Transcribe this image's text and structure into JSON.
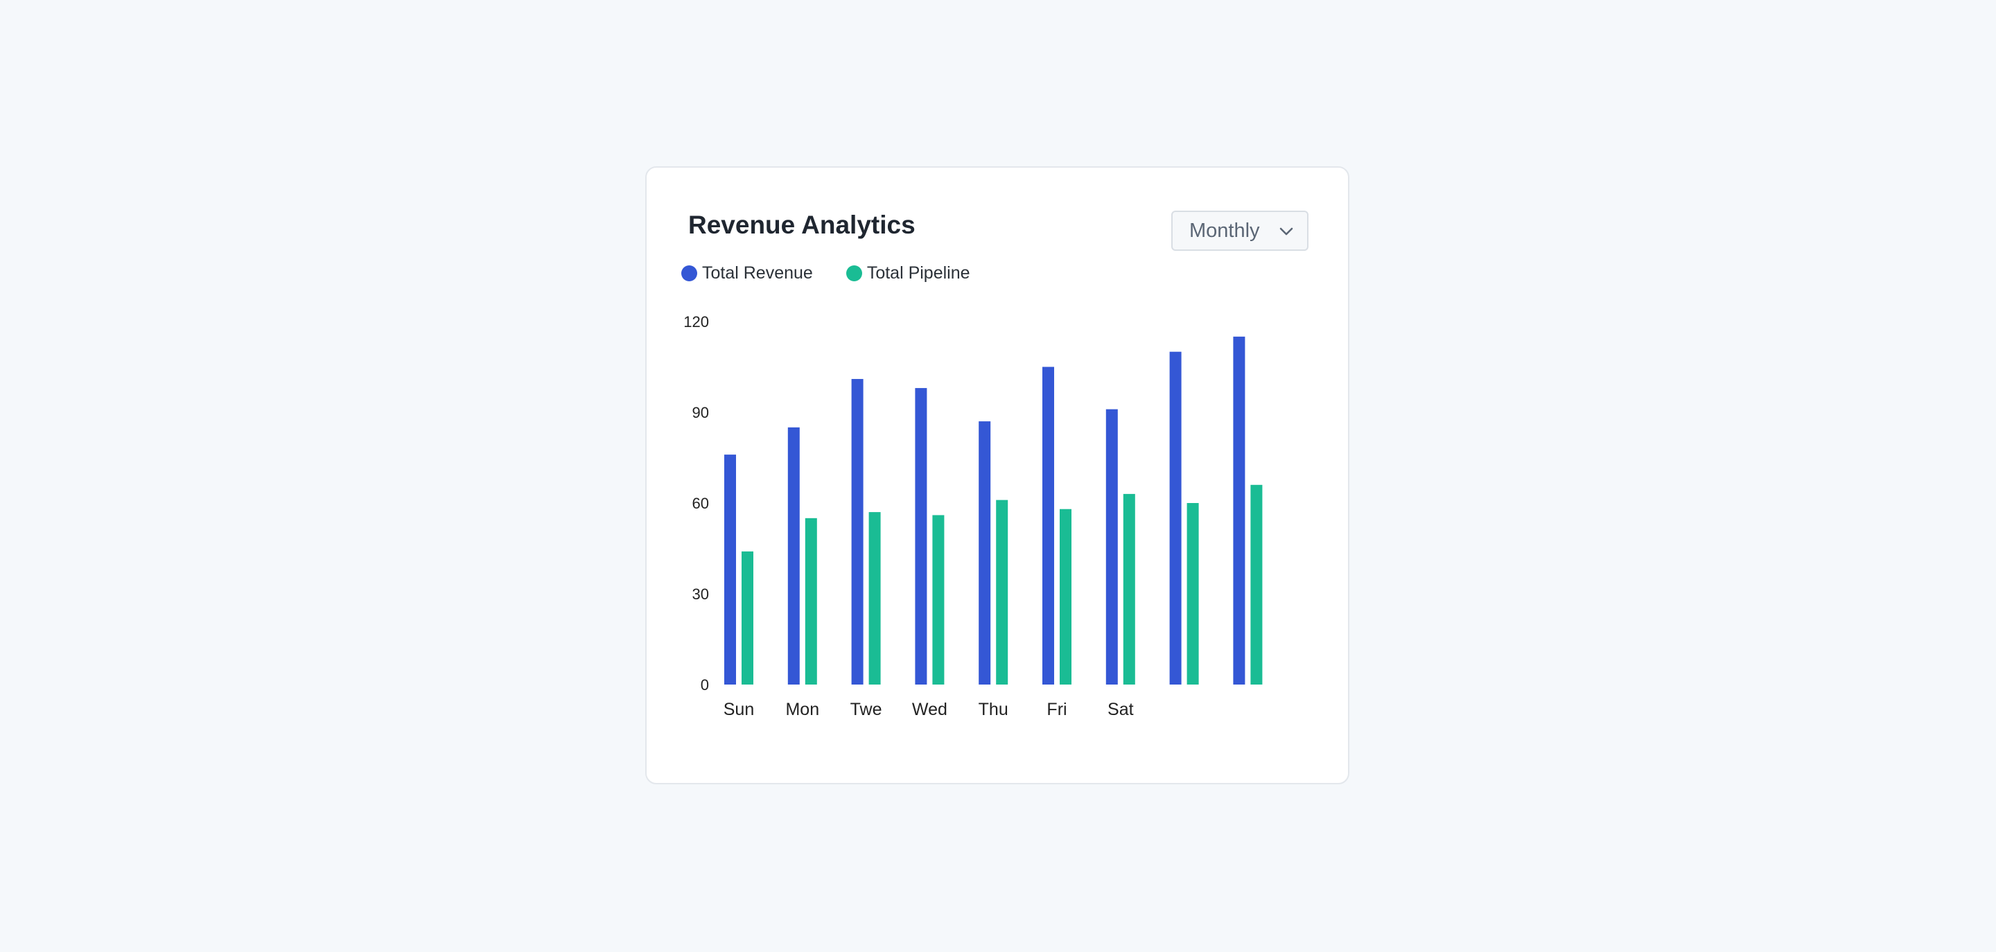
{
  "card": {
    "title": "Revenue Analytics",
    "period_select": {
      "selected": "Monthly"
    }
  },
  "colors": {
    "revenue": "#3457d5",
    "pipeline": "#1abc94",
    "axis_text": "#222222",
    "background": "#f5f8fb"
  },
  "chart_data": {
    "type": "bar",
    "title": "Revenue Analytics",
    "xlabel": "",
    "ylabel": "",
    "ylim": [
      0,
      120
    ],
    "yticks": [
      0,
      30,
      60,
      90,
      120
    ],
    "grid": false,
    "legend_position": "top-left",
    "categories": [
      "Sun",
      "Mon",
      "Twe",
      "Wed",
      "Thu",
      "Fri",
      "Sat",
      "",
      ""
    ],
    "series": [
      {
        "name": "Total Revenue",
        "color": "#3457d5",
        "values": [
          76,
          85,
          101,
          98,
          87,
          105,
          91,
          110,
          115
        ]
      },
      {
        "name": "Total Pipeline",
        "color": "#1abc94",
        "values": [
          44,
          55,
          57,
          56,
          61,
          58,
          63,
          60,
          66
        ]
      }
    ]
  }
}
